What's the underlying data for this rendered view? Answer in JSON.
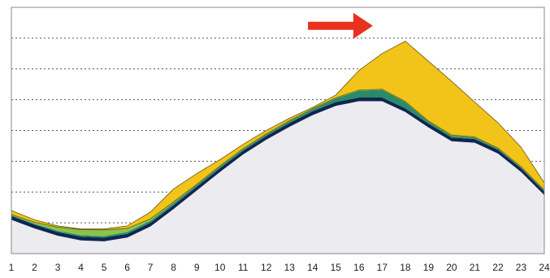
{
  "chart_data": {
    "type": "area",
    "stacked": true,
    "x": [
      1,
      2,
      3,
      4,
      5,
      6,
      7,
      8,
      9,
      10,
      11,
      12,
      13,
      14,
      15,
      16,
      17,
      18,
      19,
      20,
      21,
      22,
      23,
      24
    ],
    "xlim": [
      1,
      24
    ],
    "ylim": [
      0,
      8
    ],
    "grid": "horizontal-dashed",
    "legend": "none",
    "series": [
      {
        "color": "#ebebf0",
        "values": [
          1.1,
          0.82,
          0.58,
          0.43,
          0.4,
          0.52,
          0.88,
          1.45,
          2.05,
          2.65,
          3.22,
          3.7,
          4.12,
          4.5,
          4.8,
          4.95,
          4.95,
          4.6,
          4.1,
          3.65,
          3.6,
          3.25,
          2.65,
          1.9
        ]
      },
      {
        "color": "#0e2650",
        "values": [
          0.12,
          0.12,
          0.12,
          0.12,
          0.12,
          0.12,
          0.12,
          0.12,
          0.12,
          0.12,
          0.12,
          0.12,
          0.12,
          0.12,
          0.12,
          0.12,
          0.12,
          0.12,
          0.12,
          0.12,
          0.12,
          0.12,
          0.12,
          0.12
        ]
      },
      {
        "color": "#2a8a6a",
        "values": [
          0.03,
          0.03,
          0.04,
          0.05,
          0.05,
          0.06,
          0.07,
          0.07,
          0.06,
          0.06,
          0.05,
          0.05,
          0.06,
          0.07,
          0.12,
          0.22,
          0.25,
          0.2,
          0.07,
          0.06,
          0.05,
          0.04,
          0.03,
          0.03
        ]
      },
      {
        "color": "#8bc34a",
        "values": [
          0.02,
          0.05,
          0.12,
          0.18,
          0.2,
          0.12,
          0.06,
          0.04,
          0.02,
          0.02,
          0.02,
          0.02,
          0.02,
          0.02,
          0.02,
          0.02,
          0.02,
          0.02,
          0.02,
          0.02,
          0.02,
          0.02,
          0.02,
          0.02
        ]
      },
      {
        "color": "#f2c318",
        "values": [
          0.13,
          0.08,
          0.04,
          0.02,
          0.03,
          0.08,
          0.22,
          0.42,
          0.35,
          0.2,
          0.14,
          0.11,
          0.08,
          0.04,
          0.09,
          0.64,
          1.16,
          1.96,
          1.94,
          1.75,
          1.13,
          0.82,
          0.63,
          0.23
        ]
      }
    ],
    "annotations": [
      {
        "type": "arrow",
        "direction": "right",
        "color": "#e8321e",
        "x_from": 13.8,
        "x_to": 16.6,
        "y": 7.4
      }
    ]
  }
}
